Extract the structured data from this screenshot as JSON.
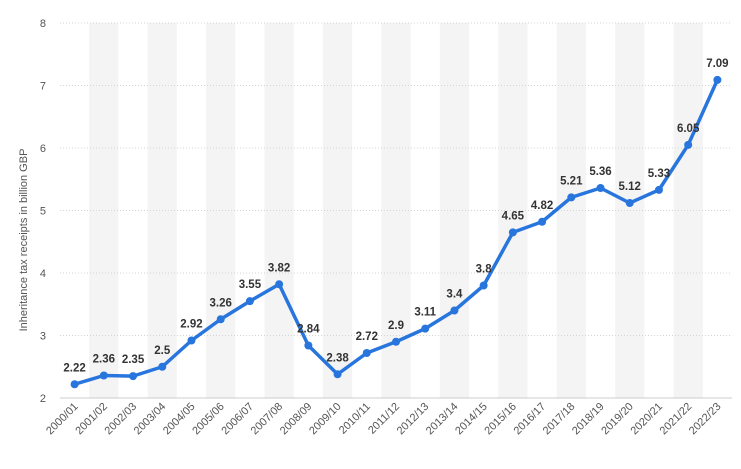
{
  "chart_data": {
    "type": "line",
    "ylabel": "Inheritance tax receipts in billion GBP",
    "xlabel": "",
    "ylim": [
      2,
      8
    ],
    "yticks": [
      2,
      3,
      4,
      5,
      6,
      7,
      8
    ],
    "grid": true,
    "line_color": "#2876dd",
    "categories": [
      "2000/01",
      "2001/02",
      "2002/03",
      "2003/04",
      "2004/05",
      "2005/06",
      "2006/07",
      "2007/08",
      "2008/09",
      "2009/10",
      "2010/11",
      "2011/12",
      "2012/13",
      "2013/14",
      "2014/15",
      "2015/16",
      "2016/17",
      "2017/18",
      "2018/19",
      "2019/20",
      "2020/21",
      "2021/22",
      "2022/23"
    ],
    "values": [
      2.22,
      2.36,
      2.35,
      2.5,
      2.92,
      3.26,
      3.55,
      3.82,
      2.84,
      2.38,
      2.72,
      2.9,
      3.11,
      3.4,
      3.8,
      4.65,
      4.82,
      5.21,
      5.36,
      5.12,
      5.33,
      6.05,
      7.09
    ],
    "data_labels": [
      "2.22",
      "2.36",
      "2.35",
      "2.5",
      "2.92",
      "3.26",
      "3.55",
      "3.82",
      "2.84",
      "2.38",
      "2.72",
      "2.9",
      "3.11",
      "3.4",
      "3.8",
      "4.65",
      "4.82",
      "5.21",
      "5.36",
      "5.12",
      "5.33",
      "6.05",
      "7.09"
    ]
  }
}
